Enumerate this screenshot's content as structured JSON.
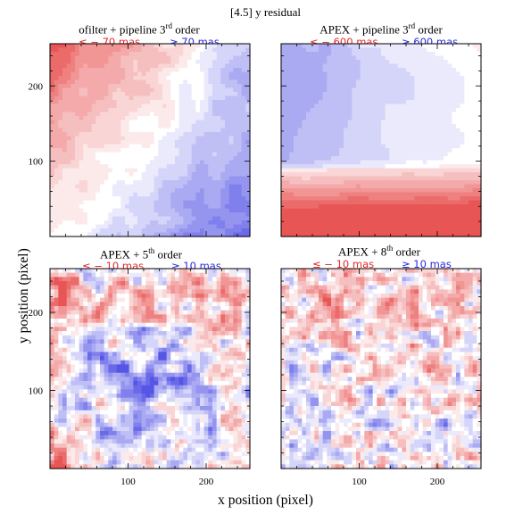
{
  "figure": {
    "title": "[4.5] y residual",
    "xlabel": "x position (pixel)",
    "ylabel": "y position (pixel)"
  },
  "panels": [
    {
      "title_main": "ofilter + pipeline 3",
      "title_sup": "rd",
      "title_tail": " order",
      "neg_label": "≤ − 70 mas",
      "pos_label": "≥ 70 mas"
    },
    {
      "title_main": "APEX + pipeline 3",
      "title_sup": "rd",
      "title_tail": " order",
      "neg_label": "≤ − 600 mas",
      "pos_label": "≥ 600 mas"
    },
    {
      "title_main": "APEX +  5",
      "title_sup": "th",
      "title_tail": " order",
      "neg_label": "≤ − 10 mas",
      "pos_label": "≥ 10 mas"
    },
    {
      "title_main": "APEX +  8",
      "title_sup": "th",
      "title_tail": " order",
      "neg_label": "≤ − 10 mas",
      "pos_label": "≥ 10 mas"
    }
  ],
  "colors": {
    "negative": "#e8262a",
    "positive": "#2a2ae0",
    "zero": "#ffffff"
  },
  "chart_data": [
    {
      "type": "heatmap",
      "title": "ofilter + pipeline 3rd order",
      "xlim": [
        0,
        256
      ],
      "ylim": [
        0,
        256
      ],
      "xticks": [
        100,
        200
      ],
      "yticks": [
        100,
        200
      ],
      "color_range_mas": [
        -70,
        70
      ],
      "pattern": "red (negative) in upper-left, blue (positive) in lower-right and upper-right corner"
    },
    {
      "type": "heatmap",
      "title": "APEX + pipeline 3rd order",
      "xlim": [
        0,
        256
      ],
      "ylim": [
        0,
        256
      ],
      "xticks": [
        100,
        200
      ],
      "yticks": [
        100,
        200
      ],
      "color_range_mas": [
        -600,
        600
      ],
      "pattern": "strong red band at bottom, blue in upper-left, faint red at top-right"
    },
    {
      "type": "heatmap",
      "title": "APEX + 5th order",
      "xlim": [
        0,
        256
      ],
      "ylim": [
        0,
        256
      ],
      "xticks": [
        100,
        200
      ],
      "yticks": [
        100,
        200
      ],
      "color_range_mas": [
        -10,
        10
      ],
      "pattern": "noisy residual; blue cluster near center, red band near y~200 and left edge"
    },
    {
      "type": "heatmap",
      "title": "APEX + 8th order",
      "xlim": [
        0,
        256
      ],
      "ylim": [
        0,
        256
      ],
      "xticks": [
        100,
        200
      ],
      "yticks": [
        100,
        200
      ],
      "color_range_mas": [
        -10,
        10
      ],
      "pattern": "noisy residual, mostly flat; red blob near center (x~130, y~130)"
    }
  ],
  "tick_labels": {
    "x": [
      "100",
      "200"
    ],
    "y": [
      "100",
      "200"
    ]
  }
}
